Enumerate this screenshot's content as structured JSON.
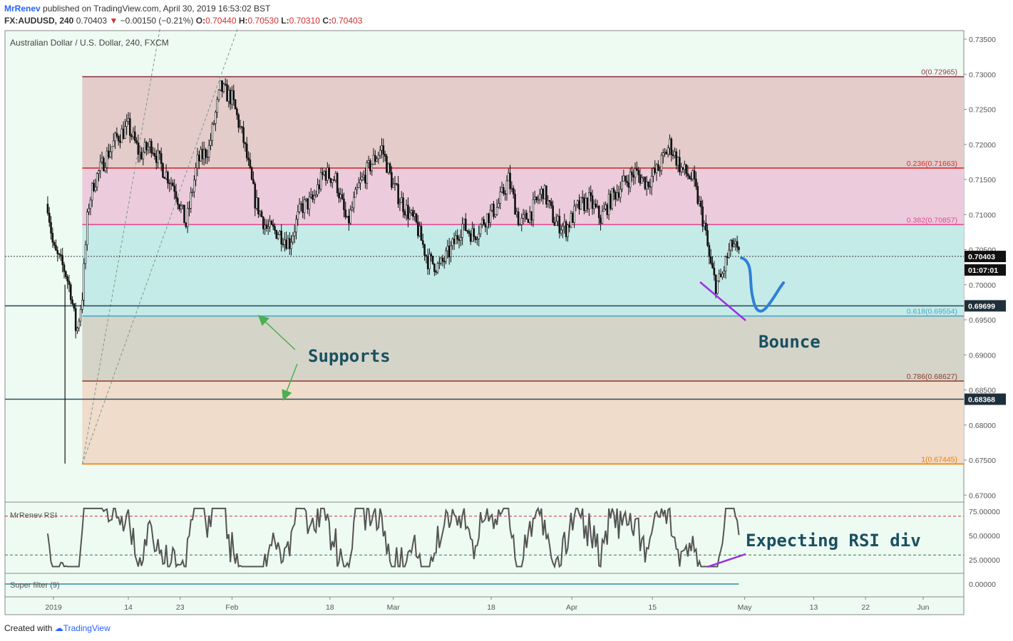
{
  "header": {
    "author": "MrRenev",
    "published_text": "published on TradingView.com, April 30, 2019 16:53:02 BST",
    "symbol": "FX:AUDUSD, 240",
    "last": "0.70403",
    "change": "−0.00150 (−0.21%)",
    "open_label": "O:",
    "open": "0.70440",
    "high_label": "H:",
    "high": "0.70530",
    "low_label": "L:",
    "low": "0.70310",
    "close_label": "C:",
    "close": "0.70403"
  },
  "footer": {
    "created_with": "Created with",
    "brand": "TradingView"
  },
  "colors": {
    "background": "#eefbf3",
    "candle": "#111111",
    "rsi_line": "#555555",
    "annotation_text": "#1a5060",
    "arrow": "#4caf50",
    "bounce_path": "#2f7fd8",
    "div_line": "#9b30e0"
  },
  "chart_data": [
    {
      "type": "candlestick",
      "title": "Australian Dollar / U.S. Dollar, 240, FXCM",
      "ylim": [
        0.6675,
        0.7365
      ],
      "y_ticks": [
        "0.73500",
        "0.73000",
        "0.72500",
        "0.72000",
        "0.71500",
        "0.71000",
        "0.70500",
        "0.70000",
        "0.69500",
        "0.69000",
        "0.68500",
        "0.68000",
        "0.67500",
        "0.67000"
      ],
      "x_ticks": [
        {
          "date": "2019-01-01",
          "label": "2019"
        },
        {
          "date": "2019-01-14",
          "label": "14"
        },
        {
          "date": "2019-01-23",
          "label": "23"
        },
        {
          "date": "2019-02-01",
          "label": "Feb"
        },
        {
          "date": "2019-02-18",
          "label": "18"
        },
        {
          "date": "2019-03-01",
          "label": "Mar"
        },
        {
          "date": "2019-03-18",
          "label": "18"
        },
        {
          "date": "2019-04-01",
          "label": "Apr"
        },
        {
          "date": "2019-04-15",
          "label": "15"
        },
        {
          "date": "2019-05-01",
          "label": "May"
        },
        {
          "date": "2019-05-13",
          "label": "13"
        },
        {
          "date": "2019-05-22",
          "label": "22"
        },
        {
          "date": "2019-06-01",
          "label": "Jun"
        }
      ],
      "price_path": [
        [
          "2018-12-31",
          0.7115
        ],
        [
          "2019-01-01",
          0.705
        ],
        [
          "2019-01-02",
          0.7035
        ],
        [
          "2019-01-03",
          0.702
        ],
        [
          "2019-01-04",
          0.699
        ],
        [
          "2019-01-05",
          0.693
        ],
        [
          "2019-01-06",
          0.6985
        ],
        [
          "2019-01-07",
          0.711
        ],
        [
          "2019-01-08",
          0.7145
        ],
        [
          "2019-01-10",
          0.718
        ],
        [
          "2019-01-12",
          0.721
        ],
        [
          "2019-01-14",
          0.7225
        ],
        [
          "2019-01-16",
          0.7185
        ],
        [
          "2019-01-18",
          0.72
        ],
        [
          "2019-01-20",
          0.7165
        ],
        [
          "2019-01-22",
          0.714
        ],
        [
          "2019-01-24",
          0.7085
        ],
        [
          "2019-01-26",
          0.7175
        ],
        [
          "2019-01-28",
          0.7195
        ],
        [
          "2019-01-30",
          0.728
        ],
        [
          "2019-02-01",
          0.7265
        ],
        [
          "2019-02-03",
          0.7205
        ],
        [
          "2019-02-05",
          0.712
        ],
        [
          "2019-02-07",
          0.708
        ],
        [
          "2019-02-09",
          0.7075
        ],
        [
          "2019-02-11",
          0.706
        ],
        [
          "2019-02-13",
          0.711
        ],
        [
          "2019-02-15",
          0.712
        ],
        [
          "2019-02-17",
          0.716
        ],
        [
          "2019-02-19",
          0.715
        ],
        [
          "2019-02-21",
          0.7085
        ],
        [
          "2019-02-23",
          0.714
        ],
        [
          "2019-02-25",
          0.717
        ],
        [
          "2019-02-27",
          0.7195
        ],
        [
          "2019-03-01",
          0.714
        ],
        [
          "2019-03-03",
          0.711
        ],
        [
          "2019-03-05",
          0.7085
        ],
        [
          "2019-03-07",
          0.7035
        ],
        [
          "2019-03-09",
          0.7025
        ],
        [
          "2019-03-11",
          0.705
        ],
        [
          "2019-03-13",
          0.7085
        ],
        [
          "2019-03-15",
          0.707
        ],
        [
          "2019-03-17",
          0.7095
        ],
        [
          "2019-03-19",
          0.711
        ],
        [
          "2019-03-21",
          0.715
        ],
        [
          "2019-03-23",
          0.7085
        ],
        [
          "2019-03-25",
          0.7105
        ],
        [
          "2019-03-27",
          0.7135
        ],
        [
          "2019-03-29",
          0.709
        ],
        [
          "2019-03-31",
          0.708
        ],
        [
          "2019-04-02",
          0.711
        ],
        [
          "2019-04-04",
          0.712
        ],
        [
          "2019-04-06",
          0.7095
        ],
        [
          "2019-04-08",
          0.7125
        ],
        [
          "2019-04-10",
          0.7145
        ],
        [
          "2019-04-12",
          0.716
        ],
        [
          "2019-04-14",
          0.7145
        ],
        [
          "2019-04-16",
          0.7165
        ],
        [
          "2019-04-18",
          0.72
        ],
        [
          "2019-04-20",
          0.7165
        ],
        [
          "2019-04-22",
          0.715
        ],
        [
          "2019-04-24",
          0.7085
        ],
        [
          "2019-04-25",
          0.703
        ],
        [
          "2019-04-26",
          0.7
        ],
        [
          "2019-04-27",
          0.701
        ],
        [
          "2019-04-28",
          0.704
        ],
        [
          "2019-04-29",
          0.706
        ],
        [
          "2019-04-30",
          0.704
        ]
      ],
      "fib_levels": [
        {
          "label": "0(0.72965)",
          "value": 0.72965,
          "color": "#8b3a4a",
          "fill": "#e4cccb"
        },
        {
          "label": "0.236(0.71663)",
          "value": 0.71663,
          "color": "#d32f2f",
          "fill": "#ecccdc"
        },
        {
          "label": "0.382(0.70857)",
          "value": 0.70857,
          "color": "#e04a94",
          "fill": "#c5ebe8"
        },
        {
          "label": "0.618(0.69554)",
          "value": 0.69554,
          "color": "#4aa8c8",
          "fill": "#d5d4c9"
        },
        {
          "label": "0.786(0.68627)",
          "value": 0.68627,
          "color": "#8a3a2a",
          "fill": "#efdccb"
        },
        {
          "label": "1(0.67445)",
          "value": 0.67445,
          "color": "#f57c00",
          "fill": null
        }
      ],
      "horizontal_lines": [
        {
          "label": "0.69699",
          "value": 0.69699,
          "color": "#2f4f5f"
        },
        {
          "label": "0.68368",
          "value": 0.68368,
          "color": "#2f4f5f"
        }
      ],
      "current_price": {
        "label": "0.70403",
        "value": 0.70403,
        "countdown": "01:07:01"
      },
      "annotations": [
        {
          "text": "Supports"
        },
        {
          "text": "Bounce"
        }
      ]
    },
    {
      "type": "line",
      "title": "MrRenev RSI",
      "ylim": [
        10,
        80
      ],
      "y_ticks": [
        "75.00000",
        "50.00000",
        "25.00000"
      ],
      "bands": [
        70,
        30
      ],
      "annotation": {
        "text": "Expecting RSI div"
      }
    },
    {
      "type": "line",
      "title": "Super filter (9)",
      "y_ticks": [
        "0.00000"
      ],
      "values": [
        0,
        0
      ]
    }
  ]
}
